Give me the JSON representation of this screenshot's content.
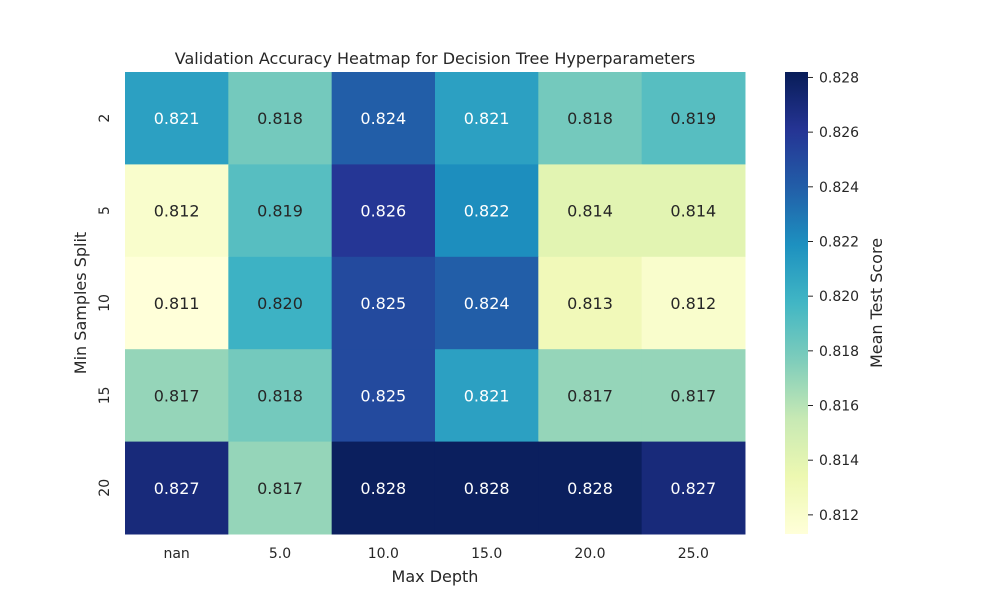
{
  "chart_data": {
    "type": "heatmap",
    "title": "Validation Accuracy Heatmap for Decision Tree Hyperparameters",
    "xlabel": "Max Depth",
    "ylabel": "Min Samples Split",
    "x_categories": [
      "nan",
      "5.0",
      "10.0",
      "15.0",
      "20.0",
      "25.0"
    ],
    "y_categories": [
      "2",
      "5",
      "10",
      "15",
      "20"
    ],
    "values": [
      [
        0.821,
        0.818,
        0.824,
        0.821,
        0.818,
        0.819
      ],
      [
        0.812,
        0.819,
        0.826,
        0.822,
        0.814,
        0.814
      ],
      [
        0.811,
        0.82,
        0.825,
        0.824,
        0.813,
        0.812
      ],
      [
        0.817,
        0.818,
        0.825,
        0.821,
        0.817,
        0.817
      ],
      [
        0.827,
        0.817,
        0.828,
        0.828,
        0.828,
        0.827
      ]
    ],
    "colorbar": {
      "label": "Mean Test Score",
      "range": [
        0.8113,
        0.8282
      ],
      "ticks": [
        "0.812",
        "0.814",
        "0.816",
        "0.818",
        "0.820",
        "0.822",
        "0.824",
        "0.826",
        "0.828"
      ],
      "colormap": "YlGnBu"
    },
    "colormap_stops": [
      "#ffffd9",
      "#edf8b1",
      "#c7e9b4",
      "#7fcdbb",
      "#41b6c4",
      "#1d91c0",
      "#225ea8",
      "#253494",
      "#081d58"
    ]
  }
}
